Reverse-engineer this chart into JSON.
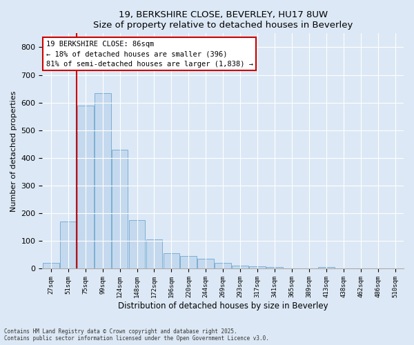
{
  "title": "19, BERKSHIRE CLOSE, BEVERLEY, HU17 8UW",
  "subtitle": "Size of property relative to detached houses in Beverley",
  "xlabel": "Distribution of detached houses by size in Beverley",
  "ylabel": "Number of detached properties",
  "bar_color": "#c5d9ee",
  "bar_edge_color": "#7aafd4",
  "categories": [
    "27sqm",
    "51sqm",
    "75sqm",
    "99sqm",
    "124sqm",
    "148sqm",
    "172sqm",
    "196sqm",
    "220sqm",
    "244sqm",
    "269sqm",
    "293sqm",
    "317sqm",
    "341sqm",
    "365sqm",
    "389sqm",
    "413sqm",
    "438sqm",
    "462sqm",
    "486sqm",
    "510sqm"
  ],
  "values": [
    20,
    170,
    590,
    635,
    430,
    175,
    105,
    55,
    45,
    35,
    20,
    10,
    8,
    5,
    0,
    0,
    5,
    0,
    0,
    0,
    0
  ],
  "ylim": [
    0,
    850
  ],
  "yticks": [
    0,
    100,
    200,
    300,
    400,
    500,
    600,
    700,
    800
  ],
  "property_line_x": 1.5,
  "property_label": "19 BERKSHIRE CLOSE: 86sqm",
  "annotation_line1": "← 18% of detached houses are smaller (396)",
  "annotation_line2": "81% of semi-detached houses are larger (1,838) →",
  "annotation_box_color": "#ffffff",
  "annotation_box_edge": "#cc0000",
  "property_line_color": "#cc0000",
  "footer1": "Contains HM Land Registry data © Crown copyright and database right 2025.",
  "footer2": "Contains public sector information licensed under the Open Government Licence v3.0.",
  "background_color": "#dce8f5",
  "plot_bg_color": "#dce8f5",
  "grid_color": "#ffffff"
}
